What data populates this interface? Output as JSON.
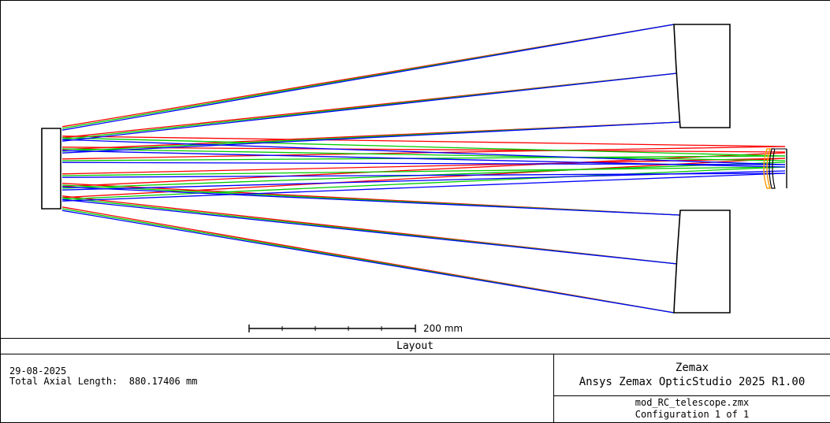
{
  "layout_title": "Layout",
  "scale_bar": {
    "label": "200 mm",
    "value_mm": 200
  },
  "footer": {
    "date": "29-08-2025",
    "total_axial_length_label": "Total Axial Length:",
    "total_axial_length_value": "880.17406 mm",
    "company": "Zemax",
    "product": "Ansys Zemax OpticStudio 2025 R1.00",
    "filename": "mod_RC_telescope.zmx",
    "configuration": "Configuration 1 of 1"
  },
  "colors": {
    "wavelength_1": "#ff0000",
    "wavelength_2": "#00cc00",
    "wavelength_3": "#0000ff",
    "lens_element": "#ff9900"
  }
}
